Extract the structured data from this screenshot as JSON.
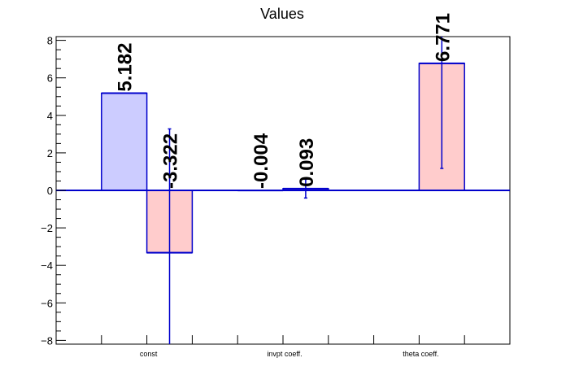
{
  "chart_data": {
    "type": "bar",
    "title": "Values",
    "xlabel": "",
    "ylabel": "",
    "ylim": [
      -8.2,
      8.2
    ],
    "yticks": [
      -8,
      -6,
      -4,
      -2,
      0,
      2,
      4,
      6,
      8
    ],
    "yticklabels": [
      "−8",
      "−6",
      "−4",
      "−2",
      "0",
      "2",
      "4",
      "6",
      "8"
    ],
    "categories": [
      "const",
      "invpt coeff.",
      "theta coeff."
    ],
    "grid": false,
    "legend": false,
    "series": [
      {
        "fill": "#ccccff",
        "stroke": "#0000cc",
        "values": [
          5.182,
          -0.004,
          null
        ],
        "labels": [
          "5.182",
          "-0.004",
          ""
        ],
        "errors": [
          0,
          0,
          0
        ]
      },
      {
        "fill": "#ffcccc",
        "stroke": "#0000cc",
        "values": [
          -3.322,
          0.093,
          6.771
        ],
        "labels": [
          "-3.322",
          "0.093",
          "6.771"
        ],
        "errors": [
          6.6,
          0.5,
          5.6
        ]
      }
    ]
  }
}
